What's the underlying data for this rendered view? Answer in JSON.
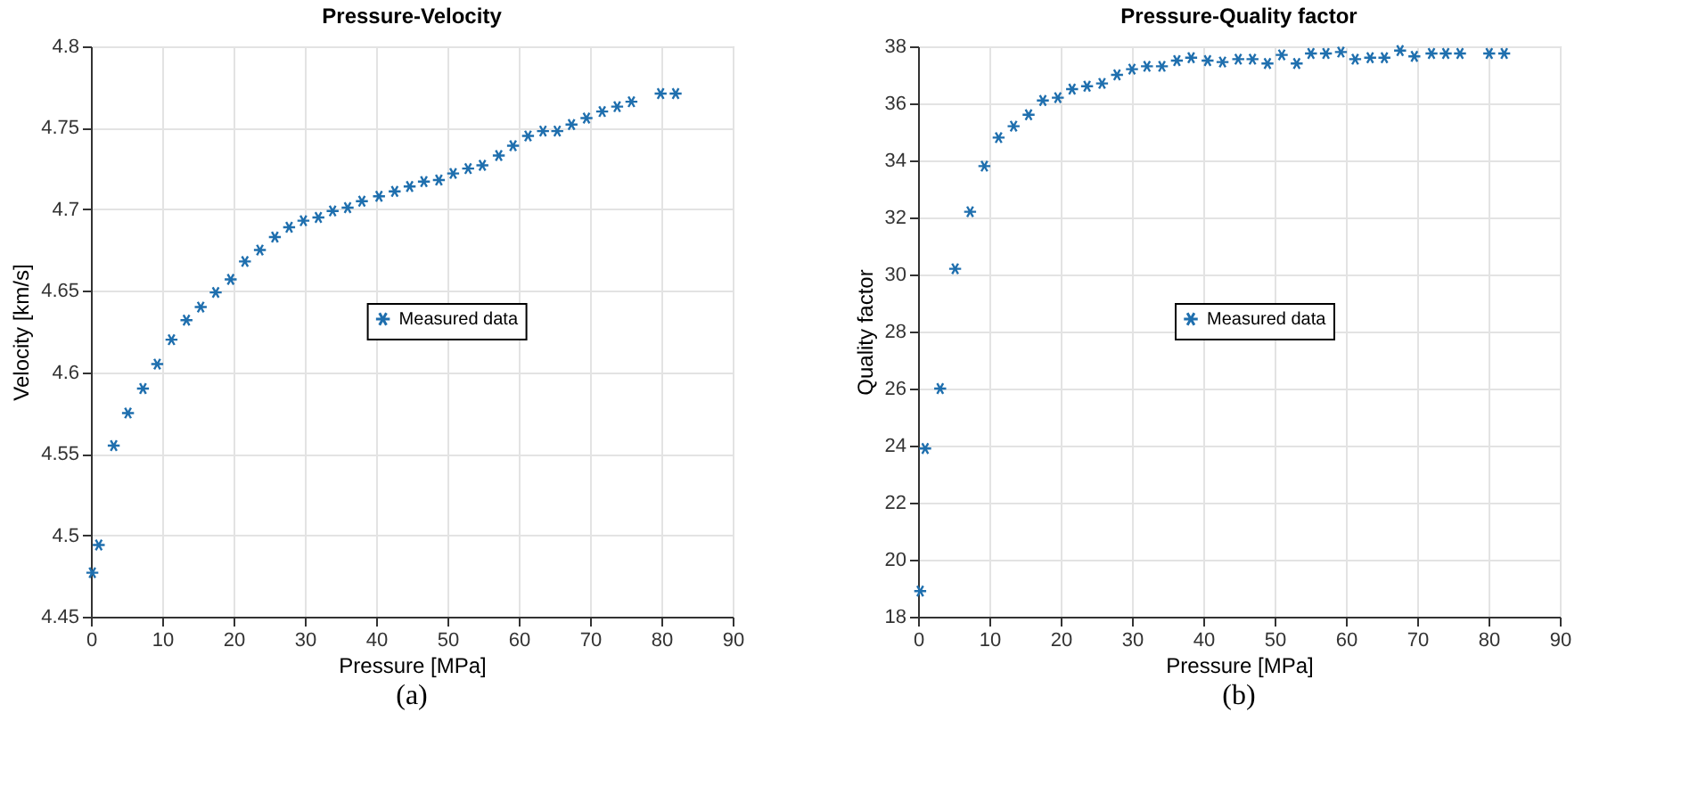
{
  "chart_data": [
    {
      "type": "scatter",
      "title": "Pressure-Velocity",
      "xlabel": "Pressure [MPa]",
      "ylabel": "Velocity [km/s]",
      "marker": "cross",
      "grid": true,
      "legend": "center",
      "annotations": [
        "(a)"
      ],
      "xlim": [
        0,
        90
      ],
      "xticks": [
        0,
        10,
        20,
        30,
        40,
        50,
        60,
        70,
        80,
        90
      ],
      "ylim": [
        4.45,
        4.8
      ],
      "yticks": [
        4.45,
        4.5,
        4.55,
        4.6,
        4.65,
        4.7,
        4.75,
        4.8
      ],
      "x": [
        0.2,
        1.1,
        3.2,
        5.2,
        7.3,
        9.3,
        11.3,
        13.4,
        15.4,
        17.5,
        19.6,
        21.6,
        23.7,
        25.8,
        27.8,
        29.8,
        31.9,
        33.9,
        36.0,
        38.0,
        40.4,
        42.6,
        44.7,
        46.7,
        48.8,
        50.8,
        52.9,
        54.9,
        57.2,
        59.2,
        61.3,
        63.4,
        65.4,
        67.4,
        69.5,
        71.7,
        73.8,
        75.8,
        79.9,
        82.0
      ],
      "series": [
        {
          "name": "Measured data",
          "color": "#1f6fae",
          "values": [
            4.477,
            4.494,
            4.555,
            4.575,
            4.59,
            4.605,
            4.62,
            4.632,
            4.64,
            4.649,
            4.657,
            4.668,
            4.675,
            4.683,
            4.689,
            4.693,
            4.695,
            4.699,
            4.701,
            4.705,
            4.708,
            4.711,
            4.714,
            4.717,
            4.718,
            4.722,
            4.725,
            4.727,
            4.733,
            4.739,
            4.745,
            4.748,
            4.748,
            4.752,
            4.756,
            4.76,
            4.763,
            4.766,
            4.771,
            4.771
          ]
        }
      ]
    },
    {
      "type": "scatter",
      "title": "Pressure-Quality factor",
      "xlabel": "Pressure [MPa]",
      "ylabel": "Quality factor",
      "marker": "cross",
      "grid": true,
      "legend": "top left",
      "annotations": [
        "(b)"
      ],
      "xlim": [
        0,
        90
      ],
      "xticks": [
        0,
        10,
        20,
        30,
        40,
        50,
        60,
        70,
        80,
        90
      ],
      "ylim": [
        18,
        38
      ],
      "yticks": [
        18,
        20,
        22,
        24,
        26,
        28,
        30,
        32,
        34,
        36,
        38
      ],
      "x": [
        0.3,
        1.0,
        3.1,
        5.2,
        7.3,
        9.3,
        11.3,
        13.4,
        15.5,
        17.5,
        19.6,
        21.6,
        23.7,
        25.8,
        27.9,
        30.0,
        32.1,
        34.2,
        36.3,
        38.3,
        40.6,
        42.7,
        44.9,
        46.9,
        49.0,
        51.0,
        53.1,
        55.1,
        57.2,
        59.3,
        61.3,
        63.4,
        65.4,
        67.6,
        69.6,
        72.0,
        74.0,
        76.0,
        80.1,
        82.2
      ],
      "series": [
        {
          "name": "Measured data",
          "color": "#1f6fae",
          "values": [
            18.9,
            23.9,
            26.0,
            30.2,
            32.2,
            33.8,
            34.8,
            35.2,
            35.6,
            36.1,
            36.2,
            36.5,
            36.6,
            36.7,
            37.0,
            37.2,
            37.3,
            37.3,
            37.5,
            37.6,
            37.5,
            37.45,
            37.55,
            37.55,
            37.4,
            37.7,
            37.4,
            37.75,
            37.75,
            37.8,
            37.55,
            37.6,
            37.6,
            37.85,
            37.65,
            37.75,
            37.75,
            37.75,
            37.75,
            37.75
          ]
        }
      ]
    }
  ]
}
